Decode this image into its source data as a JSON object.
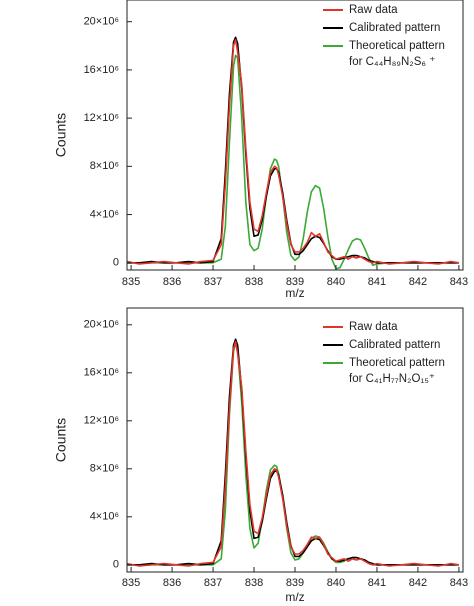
{
  "chart_data": [
    {
      "type": "line",
      "xlabel": "m/z",
      "ylabel": "Counts",
      "legend": "upper right",
      "xlim": [
        834.9,
        843.1
      ],
      "xticks": [
        835,
        836,
        837,
        838,
        839,
        840,
        841,
        842,
        843
      ],
      "ylim": [
        -600000,
        21800000
      ],
      "yticks": [
        0,
        {
          "value": 4000000,
          "label": "4×10⁶"
        },
        {
          "value": 8000000,
          "label": "8×10⁶"
        },
        {
          "value": 12000000,
          "label": "12×10⁶"
        },
        {
          "value": 16000000,
          "label": "16×10⁶"
        },
        {
          "value": 20000000,
          "label": "20×10⁶"
        }
      ],
      "x": [
        834.9,
        835.2,
        835.5,
        835.8,
        836.1,
        836.4,
        836.7,
        837.0,
        837.2,
        837.3,
        837.4,
        837.5,
        837.55,
        837.6,
        837.7,
        837.8,
        837.9,
        838.0,
        838.1,
        838.2,
        838.3,
        838.4,
        838.5,
        838.55,
        838.6,
        838.7,
        838.8,
        838.9,
        839.0,
        839.1,
        839.2,
        839.3,
        839.4,
        839.5,
        839.6,
        839.7,
        839.8,
        839.9,
        840.0,
        840.1,
        840.2,
        840.3,
        840.4,
        840.5,
        840.6,
        840.7,
        840.8,
        840.9,
        841.0,
        841.3,
        841.6,
        841.9,
        842.2,
        842.5,
        842.8,
        843.0
      ],
      "series": [
        {
          "name": "Raw data",
          "color": "#e3342b",
          "values": [
            100000,
            -100000,
            0,
            100000,
            0,
            -100000,
            100000,
            200000,
            1500000,
            6500000,
            13000000,
            18000000,
            18500000,
            17500000,
            14800000,
            9500000,
            5000000,
            2800000,
            2600000,
            3900000,
            5800000,
            7500000,
            8000000,
            7900000,
            7300000,
            5500000,
            3200000,
            1500000,
            900000,
            900000,
            1200000,
            1700000,
            2500000,
            2200000,
            2400000,
            1700000,
            900000,
            600000,
            300000,
            400000,
            500000,
            300000,
            500000,
            400000,
            500000,
            300000,
            100000,
            0,
            100000,
            -100000,
            0,
            100000,
            0,
            -100000,
            100000,
            0
          ]
        },
        {
          "name": "Calibrated pattern",
          "color": "#000000",
          "values": [
            0,
            0,
            100000,
            0,
            0,
            100000,
            0,
            100000,
            2000000,
            7500000,
            14000000,
            18300000,
            18700000,
            18200000,
            14500000,
            9000000,
            4500000,
            2200000,
            2300000,
            3600000,
            5500000,
            7200000,
            7800000,
            7800000,
            7500000,
            5800000,
            3500000,
            1600000,
            700000,
            700000,
            1000000,
            1500000,
            2000000,
            2200000,
            2100000,
            1600000,
            1000000,
            500000,
            300000,
            300000,
            400000,
            500000,
            600000,
            600000,
            500000,
            400000,
            200000,
            100000,
            0,
            0,
            0,
            0,
            0,
            0,
            0,
            0
          ]
        },
        {
          "name": "Theoretical pattern\nfor C₄₄H₈₉N₂S₆ ⁺",
          "color": "#3aa935",
          "values": [
            0,
            0,
            0,
            0,
            0,
            0,
            0,
            0,
            300000,
            3000000,
            10000000,
            16300000,
            17200000,
            17000000,
            12000000,
            5000000,
            1500000,
            1000000,
            1200000,
            2800000,
            5500000,
            7800000,
            8600000,
            8500000,
            8000000,
            5500000,
            2500000,
            600000,
            200000,
            500000,
            2000000,
            4200000,
            5900000,
            6400000,
            6200000,
            4500000,
            2200000,
            300000,
            -500000,
            -400000,
            300000,
            1100000,
            1800000,
            2000000,
            1900000,
            1200000,
            400000,
            -200000,
            -100000,
            0,
            0,
            0,
            0,
            0,
            0,
            0
          ]
        }
      ]
    },
    {
      "type": "line",
      "xlabel": "m/z",
      "ylabel": "Counts",
      "legend": "upper right",
      "xlim": [
        834.9,
        843.1
      ],
      "xticks": [
        835,
        836,
        837,
        838,
        839,
        840,
        841,
        842,
        843
      ],
      "ylim": [
        -600000,
        21400000
      ],
      "yticks": [
        0,
        {
          "value": 4000000,
          "label": "4×10⁶"
        },
        {
          "value": 8000000,
          "label": "8×10⁶"
        },
        {
          "value": 12000000,
          "label": "12×10⁶"
        },
        {
          "value": 16000000,
          "label": "16×10⁶"
        },
        {
          "value": 20000000,
          "label": "20×10⁶"
        }
      ],
      "x": [
        834.9,
        835.2,
        835.5,
        835.8,
        836.1,
        836.4,
        836.7,
        837.0,
        837.2,
        837.3,
        837.4,
        837.5,
        837.55,
        837.6,
        837.7,
        837.8,
        837.9,
        838.0,
        838.1,
        838.2,
        838.3,
        838.4,
        838.5,
        838.55,
        838.6,
        838.7,
        838.8,
        838.9,
        839.0,
        839.1,
        839.2,
        839.3,
        839.4,
        839.5,
        839.6,
        839.7,
        839.8,
        839.9,
        840.0,
        840.1,
        840.2,
        840.3,
        840.4,
        840.5,
        840.6,
        840.7,
        840.8,
        840.9,
        841.0,
        841.3,
        841.6,
        841.9,
        842.2,
        842.5,
        842.8,
        843.0
      ],
      "series": [
        {
          "name": "Raw data",
          "color": "#e3342b",
          "values": [
            100000,
            -100000,
            0,
            100000,
            0,
            -100000,
            100000,
            200000,
            1500000,
            6500000,
            13000000,
            18000000,
            18600000,
            17600000,
            14800000,
            9500000,
            5000000,
            2800000,
            2600000,
            3900000,
            5800000,
            7500000,
            8000000,
            7900000,
            7300000,
            5500000,
            3200000,
            1500000,
            900000,
            900000,
            1200000,
            1700000,
            2300000,
            2200000,
            2300000,
            1700000,
            900000,
            600000,
            300000,
            400000,
            500000,
            300000,
            500000,
            400000,
            500000,
            300000,
            100000,
            0,
            100000,
            -100000,
            0,
            100000,
            0,
            -100000,
            100000,
            0
          ]
        },
        {
          "name": "Calibrated pattern",
          "color": "#000000",
          "values": [
            0,
            0,
            100000,
            0,
            0,
            100000,
            0,
            100000,
            2000000,
            7500000,
            14000000,
            18300000,
            18800000,
            18300000,
            14500000,
            9000000,
            4500000,
            2200000,
            2300000,
            3600000,
            5500000,
            7200000,
            7800000,
            7800000,
            7500000,
            5800000,
            3500000,
            1600000,
            700000,
            700000,
            1000000,
            1500000,
            2000000,
            2200000,
            2100000,
            1600000,
            1000000,
            500000,
            300000,
            300000,
            400000,
            500000,
            600000,
            600000,
            500000,
            400000,
            200000,
            100000,
            0,
            0,
            0,
            0,
            0,
            0,
            0,
            0
          ]
        },
        {
          "name": "Theoretical pattern\nfor C₄₁H₇₇N₂O₁₅⁺",
          "color": "#3aa935",
          "values": [
            0,
            0,
            0,
            0,
            0,
            0,
            0,
            0,
            500000,
            4500000,
            12500000,
            17800000,
            18500000,
            17800000,
            13500000,
            7500000,
            3000000,
            1400000,
            1800000,
            3800000,
            6200000,
            7900000,
            8300000,
            8200000,
            7600000,
            5600000,
            3000000,
            1000000,
            400000,
            500000,
            1000000,
            1600000,
            2200000,
            2400000,
            2300000,
            1800000,
            1100000,
            500000,
            200000,
            200000,
            300000,
            500000,
            600000,
            600000,
            500000,
            400000,
            200000,
            0,
            0,
            0,
            0,
            0,
            0,
            0,
            0,
            0
          ]
        }
      ]
    }
  ]
}
